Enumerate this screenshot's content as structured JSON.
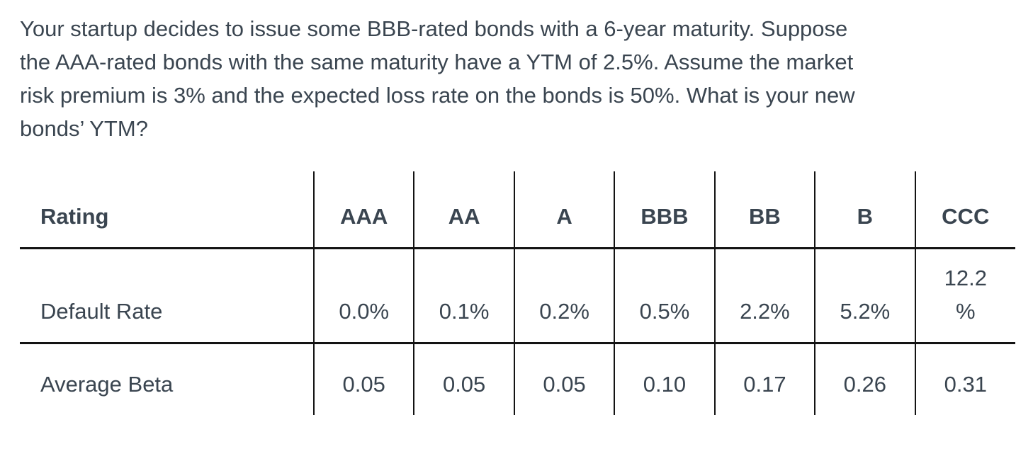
{
  "question": {
    "text": "Your startup decides to issue some BBB-rated bonds with a 6-year maturity. Suppose the AAA-rated bonds with the same maturity have a YTM of 2.5%. Assume the market risk premium is 3% and the expected loss rate on the bonds is 50%. What is your new bonds’ YTM?",
    "lines": [
      "Your startup decides to issue some BBB-rated bonds with a 6-year maturity. Suppose",
      "the AAA-rated bonds with the same maturity have a YTM of 2.5%. Assume the market",
      "risk premium is 3% and the expected loss rate on the bonds is 50%. What is your new",
      "bonds’ YTM?"
    ]
  },
  "table": {
    "header": [
      "Rating",
      "AAA",
      "AA",
      "A",
      "BBB",
      "BB",
      "B",
      "CCC"
    ],
    "rows": [
      {
        "label": "Default Rate",
        "values": [
          "0.0%",
          "0.1%",
          "0.2%",
          "0.5%",
          "2.2%",
          "5.2%",
          "12.2 %"
        ]
      },
      {
        "label": "Average Beta",
        "values": [
          "0.05",
          "0.05",
          "0.05",
          "0.10",
          "0.17",
          "0.26",
          "0.31"
        ]
      }
    ]
  },
  "colors": {
    "text": "#3a4550",
    "table_border": "#131313",
    "background": "#ffffff"
  }
}
